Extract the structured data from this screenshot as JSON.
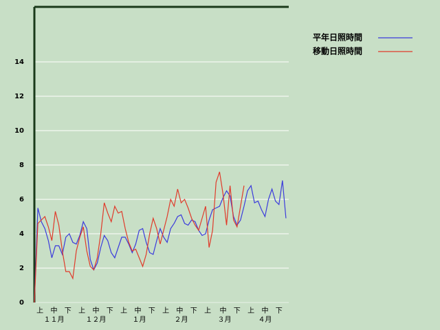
{
  "chart_data": {
    "type": "line",
    "x": [
      0,
      2.5,
      5,
      7.5,
      10,
      12.5,
      15,
      17.5,
      20,
      22.5,
      25,
      27.5,
      30,
      32.5,
      35,
      37.5,
      40,
      42.5,
      45,
      47.5,
      50,
      52.5,
      55,
      57.5,
      60,
      62.5,
      65,
      67.5,
      70,
      72.5,
      75,
      77.5,
      80,
      82.5,
      85,
      87.5,
      90,
      92.5,
      95,
      97.5,
      100,
      102.5,
      105,
      107.5,
      110,
      112.5,
      115,
      117.5,
      120,
      122.5,
      125,
      127.5,
      130,
      132.5,
      135,
      137.5,
      140,
      142.5,
      145,
      147.5,
      150,
      152.5,
      155,
      157.5,
      160,
      162.5,
      165,
      167.5,
      170,
      172.5,
      175,
      177.5,
      180
    ],
    "series": [
      {
        "name": "平年日照時間",
        "color": "#3a3adc",
        "values": [
          0,
          5.5,
          4.7,
          4.3,
          3.6,
          2.6,
          3.3,
          3.3,
          2.8,
          3.8,
          4.0,
          3.5,
          3.4,
          3.9,
          4.7,
          4.3,
          2.5,
          1.9,
          2.3,
          3.2,
          3.9,
          3.6,
          2.9,
          2.6,
          3.2,
          3.8,
          3.8,
          3.4,
          2.9,
          3.4,
          4.2,
          4.3,
          3.5,
          2.9,
          2.8,
          3.6,
          4.3,
          3.8,
          3.5,
          4.3,
          4.6,
          5.0,
          5.1,
          4.6,
          4.5,
          4.8,
          4.7,
          4.2,
          3.9,
          4.0,
          4.8,
          5.4,
          5.5,
          5.6,
          6.1,
          6.5,
          6.2,
          5.0,
          4.5,
          4.8,
          5.6,
          6.5,
          6.8,
          5.8,
          5.9,
          5.4,
          5.0,
          6.0,
          6.6,
          5.9,
          5.7,
          7.1,
          4.9
        ]
      },
      {
        "name": "移動日照時間",
        "color": "#e03a2a",
        "values": [
          0,
          4.6,
          4.8,
          5.0,
          4.4,
          3.6,
          5.3,
          4.5,
          3.0,
          1.8,
          1.8,
          1.4,
          3.0,
          3.8,
          4.4,
          3.0,
          2.1,
          1.9,
          2.6,
          4.0,
          5.8,
          5.2,
          4.7,
          5.6,
          5.2,
          5.3,
          4.3,
          3.5,
          3.0,
          3.1,
          2.6,
          2.1,
          2.8,
          4.0,
          4.9,
          4.3,
          3.4,
          4.2,
          5.0,
          6.0,
          5.6,
          6.6,
          5.8,
          6.0,
          5.5,
          4.9,
          4.5,
          4.2,
          4.9,
          5.6,
          3.2,
          4.2,
          7.0,
          7.6,
          6.3,
          4.5,
          6.8,
          4.8,
          4.4,
          5.6,
          6.8,
          null,
          null,
          null,
          null,
          null,
          null,
          null,
          null,
          null,
          null,
          null,
          null
        ]
      }
    ],
    "xlim": [
      0,
      182
    ],
    "xticks": [
      {
        "value": 4,
        "label": "上"
      },
      {
        "value": 14,
        "label": "中"
      },
      {
        "value": 24,
        "label": "下"
      },
      {
        "value": 34,
        "label": "上"
      },
      {
        "value": 44,
        "label": "中"
      },
      {
        "value": 54,
        "label": "下"
      },
      {
        "value": 64,
        "label": "上"
      },
      {
        "value": 74,
        "label": "中"
      },
      {
        "value": 84,
        "label": "下"
      },
      {
        "value": 94,
        "label": "上"
      },
      {
        "value": 104,
        "label": "中"
      },
      {
        "value": 114,
        "label": "下"
      },
      {
        "value": 124,
        "label": "上"
      },
      {
        "value": 135,
        "label": "中"
      },
      {
        "value": 145,
        "label": "下"
      },
      {
        "value": 155,
        "label": "上"
      },
      {
        "value": 165,
        "label": "中"
      },
      {
        "value": 175,
        "label": "下"
      }
    ],
    "month_ticks": [
      {
        "value": 14,
        "label": "１１月"
      },
      {
        "value": 44,
        "label": "１２月"
      },
      {
        "value": 75,
        "label": "１月"
      },
      {
        "value": 105,
        "label": "２月"
      },
      {
        "value": 136,
        "label": "３月"
      },
      {
        "value": 165,
        "label": "４月"
      }
    ],
    "ylim": [
      0,
      17.2
    ],
    "yticks": [
      0,
      2,
      4,
      6,
      8,
      10,
      12,
      14
    ],
    "grid": true
  }
}
